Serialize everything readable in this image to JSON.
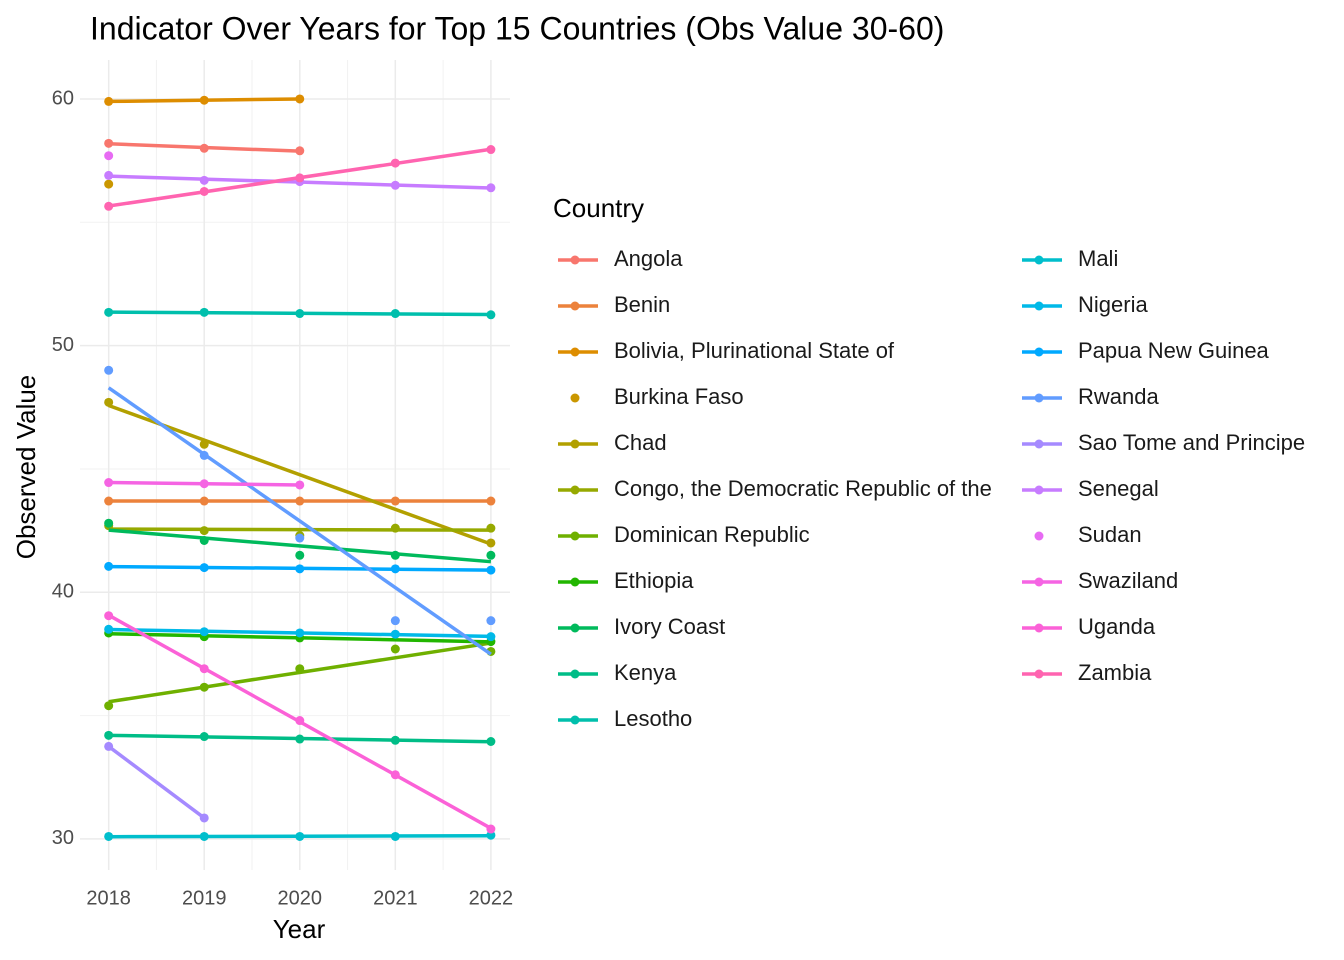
{
  "chart_data": {
    "type": "scatter",
    "trendline": "linear",
    "title": "Indicator Over Years for Top 15 Countries (Obs Value 30-60)",
    "x_label": "Year",
    "y_label": "Observed Value",
    "legend_title": "Country",
    "legend_position": "right",
    "legend_columns": 2,
    "grid": true,
    "minor_grid": true,
    "x": [
      2018,
      2019,
      2020,
      2021,
      2022
    ],
    "xlim": [
      2017.7,
      2022.2
    ],
    "xticks": [
      2018,
      2019,
      2020,
      2021,
      2022
    ],
    "ylim": [
      28.74,
      61.58
    ],
    "yticks": [
      30,
      40,
      50,
      60
    ],
    "series": [
      {
        "name": "Angola",
        "color": "#F8766D",
        "values": [
          58.2,
          58.0,
          57.9,
          null,
          null
        ]
      },
      {
        "name": "Benin",
        "color": "#EC823C",
        "values": [
          43.7,
          43.7,
          43.7,
          43.7,
          43.7
        ]
      },
      {
        "name": "Bolivia, Plurinational State of",
        "color": "#DD8D00",
        "values": [
          59.9,
          59.95,
          60.0,
          null,
          null
        ]
      },
      {
        "name": "Burkina Faso",
        "color": "#CA9700",
        "values": [
          56.55,
          null,
          null,
          null,
          null
        ]
      },
      {
        "name": "Chad",
        "color": "#B2A000",
        "values": [
          47.7,
          46.0,
          null,
          null,
          42.0
        ]
      },
      {
        "name": "Congo, the Democratic Republic of the",
        "color": "#96A900",
        "values": [
          42.7,
          42.5,
          42.3,
          42.6,
          42.6
        ]
      },
      {
        "name": "Dominican Republic",
        "color": "#6FB000",
        "values": [
          35.4,
          36.15,
          36.9,
          37.7,
          37.6
        ]
      },
      {
        "name": "Ethiopia",
        "color": "#22B600",
        "values": [
          38.35,
          38.2,
          38.15,
          null,
          38.0
        ]
      },
      {
        "name": "Ivory Coast",
        "color": "#00BA5C",
        "values": [
          42.8,
          42.1,
          41.5,
          41.5,
          41.5
        ]
      },
      {
        "name": "Kenya",
        "color": "#00BD87",
        "values": [
          34.2,
          34.15,
          34.05,
          34.0,
          33.95
        ]
      },
      {
        "name": "Lesotho",
        "color": "#00BFAC",
        "values": [
          51.35,
          51.35,
          51.3,
          51.3,
          51.25
        ]
      },
      {
        "name": "Mali",
        "color": "#00BECC",
        "values": [
          30.1,
          30.1,
          30.1,
          30.1,
          30.15
        ]
      },
      {
        "name": "Nigeria",
        "color": "#00B9E8",
        "values": [
          38.5,
          38.4,
          38.35,
          38.3,
          38.2
        ]
      },
      {
        "name": "Papua New Guinea",
        "color": "#00A9FF",
        "values": [
          41.05,
          41.0,
          40.95,
          40.95,
          40.9
        ]
      },
      {
        "name": "Rwanda",
        "color": "#619CFF",
        "values": [
          49.0,
          45.55,
          42.2,
          38.85,
          38.85
        ]
      },
      {
        "name": "Sao Tome and Principe",
        "color": "#A58AFF",
        "values": [
          33.75,
          30.85,
          null,
          null,
          null
        ]
      },
      {
        "name": "Senegal",
        "color": "#C77CFF",
        "values": [
          56.9,
          56.7,
          56.65,
          56.5,
          56.4
        ]
      },
      {
        "name": "Sudan",
        "color": "#E76BF3",
        "values": [
          57.7,
          null,
          null,
          null,
          null
        ]
      },
      {
        "name": "Swaziland",
        "color": "#F564E3",
        "values": [
          44.45,
          44.4,
          44.35,
          null,
          null
        ]
      },
      {
        "name": "Uganda",
        "color": "#FB61D7",
        "values": [
          39.05,
          36.9,
          34.8,
          32.6,
          30.4
        ]
      },
      {
        "name": "Zambia",
        "color": "#FF64B0",
        "values": [
          55.65,
          56.25,
          56.8,
          57.4,
          57.95
        ]
      }
    ]
  }
}
